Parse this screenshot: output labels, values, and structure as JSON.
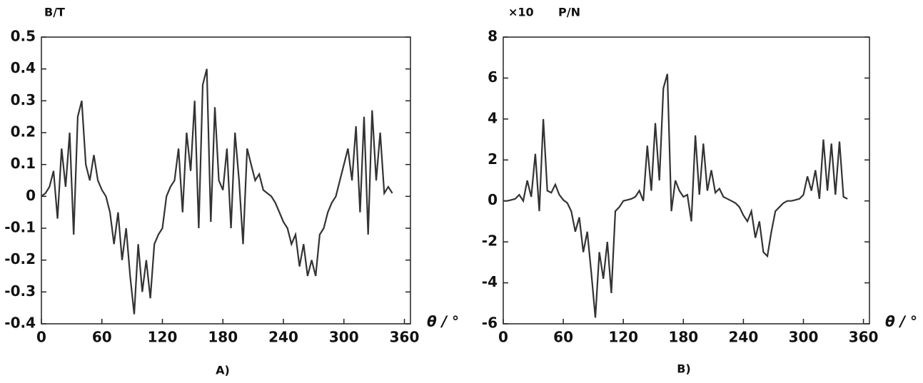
{
  "chart_data": [
    {
      "type": "line",
      "y_label": "B/T",
      "x_label": "θ / °",
      "caption": "A)",
      "xlim": [
        0,
        366
      ],
      "xticks": [
        0,
        60,
        120,
        180,
        240,
        300,
        360
      ],
      "ylim": [
        -0.4,
        0.5
      ],
      "yticks": [
        0.5,
        0.4,
        0.3,
        0.2,
        0.1,
        0,
        -0.1,
        -0.2,
        -0.3,
        -0.4
      ],
      "color": "#333333",
      "x": [
        0,
        4,
        8,
        12,
        16,
        20,
        24,
        28,
        32,
        36,
        40,
        44,
        48,
        52,
        56,
        60,
        64,
        68,
        72,
        76,
        80,
        84,
        88,
        92,
        96,
        100,
        104,
        108,
        112,
        116,
        120,
        124,
        128,
        132,
        136,
        140,
        144,
        148,
        152,
        156,
        160,
        164,
        168,
        172,
        176,
        180,
        184,
        188,
        192,
        196,
        200,
        204,
        208,
        212,
        216,
        220,
        224,
        228,
        232,
        236,
        240,
        244,
        248,
        252,
        256,
        260,
        264,
        268,
        272,
        276,
        280,
        284,
        288,
        292,
        296,
        300,
        304,
        308,
        312,
        316,
        320,
        324,
        328,
        332,
        336,
        340,
        344,
        348
      ],
      "values": [
        0,
        0.01,
        0.03,
        0.08,
        -0.07,
        0.15,
        0.03,
        0.2,
        -0.12,
        0.25,
        0.3,
        0.1,
        0.05,
        0.13,
        0.05,
        0.02,
        0,
        -0.05,
        -0.15,
        -0.05,
        -0.2,
        -0.1,
        -0.25,
        -0.37,
        -0.15,
        -0.3,
        -0.2,
        -0.32,
        -0.15,
        -0.12,
        -0.1,
        0,
        0.03,
        0.05,
        0.15,
        -0.05,
        0.2,
        0.08,
        0.3,
        -0.1,
        0.35,
        0.4,
        -0.08,
        0.28,
        0.05,
        0.02,
        0.15,
        -0.1,
        0.2,
        0.05,
        -0.15,
        0.15,
        0.1,
        0.05,
        0.07,
        0.02,
        0.01,
        0,
        -0.02,
        -0.05,
        -0.08,
        -0.1,
        -0.15,
        -0.12,
        -0.22,
        -0.15,
        -0.25,
        -0.2,
        -0.25,
        -0.12,
        -0.1,
        -0.05,
        -0.02,
        0,
        0.05,
        0.1,
        0.15,
        0.05,
        0.22,
        -0.05,
        0.25,
        -0.12,
        0.27,
        0.05,
        0.2,
        0.01,
        0.03,
        0.01
      ]
    },
    {
      "type": "line",
      "y_multiplier": "×10",
      "y_label": "P/N",
      "x_label": "θ / °",
      "caption": "B)",
      "xlim": [
        0,
        366
      ],
      "xticks": [
        0,
        60,
        120,
        180,
        240,
        300,
        360
      ],
      "ylim": [
        -6,
        8
      ],
      "yticks": [
        8,
        6,
        4,
        2,
        0,
        -2,
        -4,
        -6
      ],
      "color": "#333333",
      "x": [
        0,
        4,
        8,
        12,
        16,
        20,
        24,
        28,
        32,
        36,
        40,
        44,
        48,
        52,
        56,
        60,
        64,
        68,
        72,
        76,
        80,
        84,
        88,
        92,
        96,
        100,
        104,
        108,
        112,
        116,
        120,
        124,
        128,
        132,
        136,
        140,
        144,
        148,
        152,
        156,
        160,
        164,
        168,
        172,
        176,
        180,
        184,
        188,
        192,
        196,
        200,
        204,
        208,
        212,
        216,
        220,
        224,
        228,
        232,
        236,
        240,
        244,
        248,
        252,
        256,
        260,
        264,
        268,
        272,
        276,
        280,
        284,
        288,
        292,
        296,
        300,
        304,
        308,
        312,
        316,
        320,
        324,
        328,
        332,
        336,
        340,
        344
      ],
      "values": [
        0,
        0,
        0.05,
        0.1,
        0.3,
        0,
        1.0,
        0.2,
        2.3,
        -0.5,
        4.0,
        0.5,
        0.4,
        0.8,
        0.3,
        0.05,
        -0.1,
        -0.5,
        -1.5,
        -0.8,
        -2.5,
        -1.5,
        -3.5,
        -5.7,
        -2.5,
        -3.8,
        -2,
        -4.5,
        -0.5,
        -0.3,
        0,
        0.05,
        0.1,
        0.2,
        0.5,
        0,
        2.7,
        0.5,
        3.8,
        1.0,
        5.5,
        6.2,
        -0.5,
        1.0,
        0.5,
        0.2,
        0.3,
        -1,
        3.2,
        0.3,
        2.8,
        0.5,
        1.5,
        0.4,
        0.6,
        0.2,
        0.1,
        0,
        -0.1,
        -0.3,
        -0.7,
        -1,
        -0.5,
        -1.8,
        -1,
        -2.5,
        -2.7,
        -1.5,
        -0.5,
        -0.3,
        -0.1,
        0,
        0,
        0.05,
        0.1,
        0.3,
        1.2,
        0.5,
        1.5,
        0.1,
        3,
        0.5,
        2.8,
        0.3,
        2.9,
        0.2,
        0.1
      ]
    }
  ]
}
